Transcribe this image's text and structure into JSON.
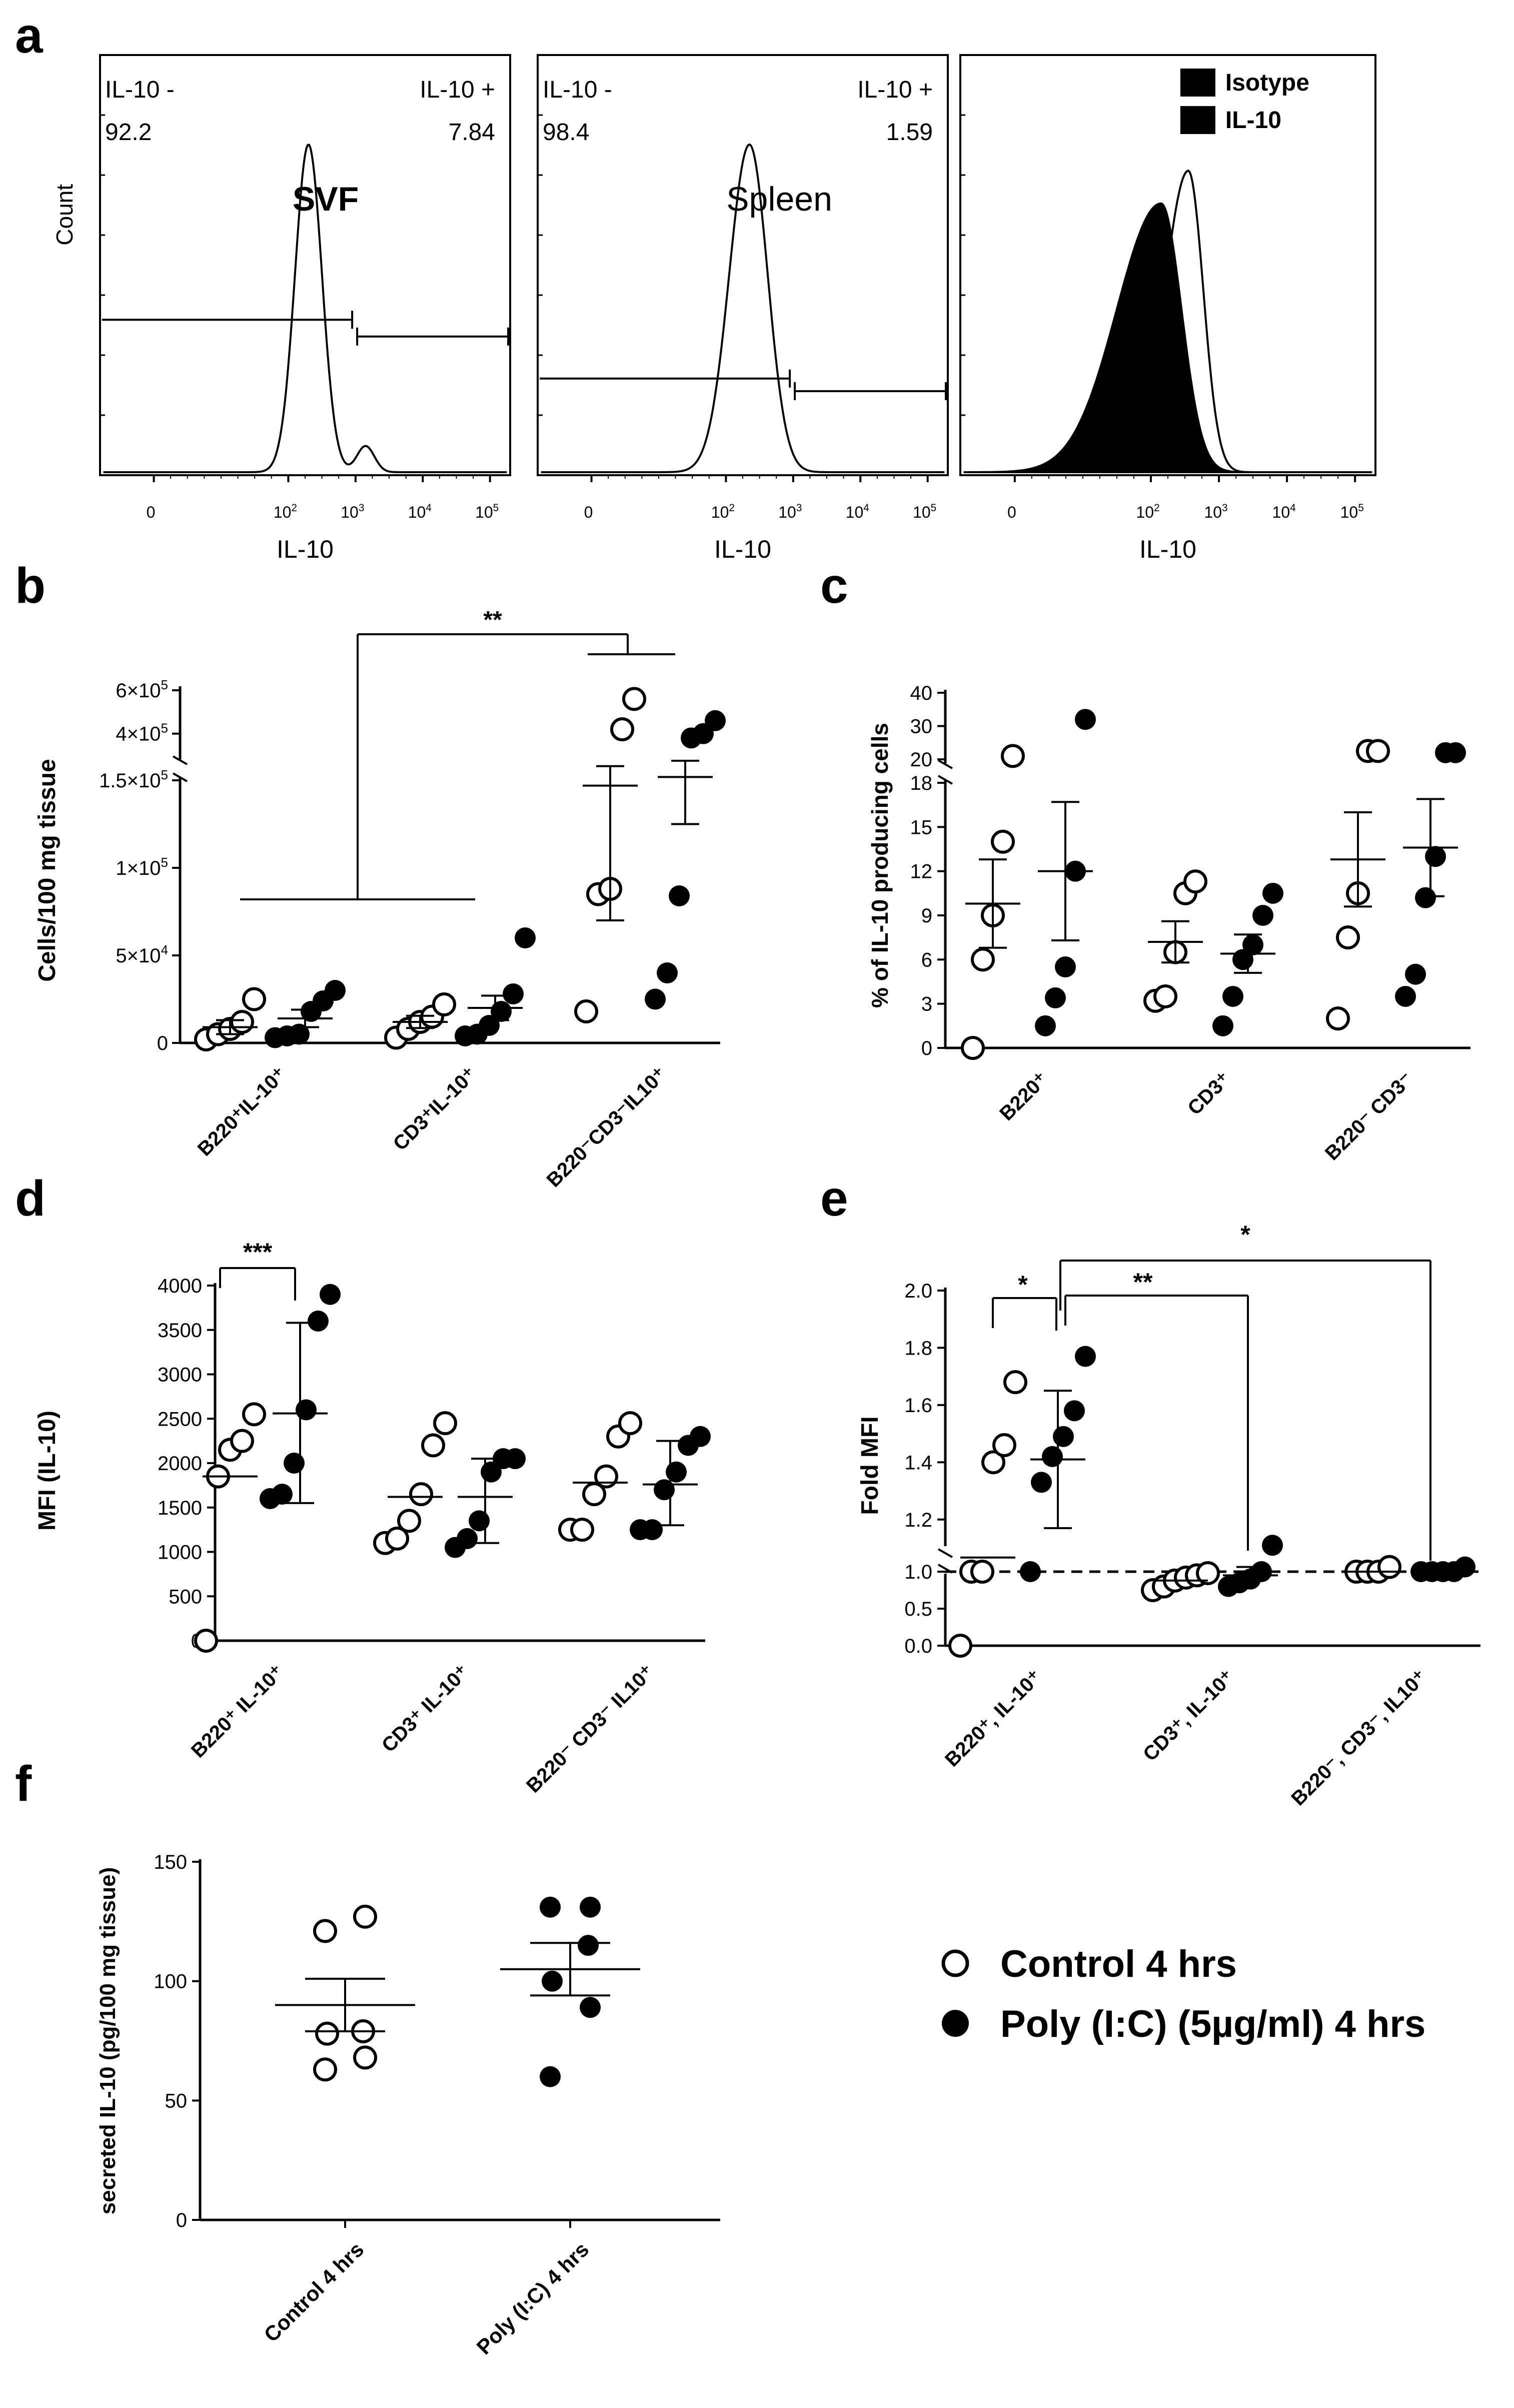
{
  "figure": {
    "panel_letters": [
      "a",
      "b",
      "c",
      "d",
      "e",
      "f"
    ]
  },
  "legend": {
    "control_label": "Control 4 hrs",
    "treated_label": "Poly (I:C) (5µg/ml) 4 hrs"
  },
  "chart_data": [
    {
      "panel": "a1",
      "type": "histogram",
      "title": "SVF",
      "xlabel": "IL-10",
      "ylabel": "Count",
      "xtick_labels": [
        "0",
        "10",
        "10",
        "10",
        "10"
      ],
      "xtick_exponents": [
        "",
        "2",
        "3",
        "4",
        "5"
      ],
      "gates": [
        {
          "label": "IL-10 -",
          "value": "92.2"
        },
        {
          "label": "IL-10 +",
          "value": "7.84"
        }
      ],
      "peaks_log10": [
        2.3,
        3.15
      ]
    },
    {
      "panel": "a2",
      "type": "histogram",
      "title": "Spleen",
      "xlabel": "IL-10",
      "xtick_labels": [
        "0",
        "10",
        "10",
        "10",
        "10"
      ],
      "xtick_exponents": [
        "",
        "2",
        "3",
        "4",
        "5"
      ],
      "gates": [
        {
          "label": "IL-10 -",
          "value": "98.4"
        },
        {
          "label": "IL-10 +",
          "value": "1.59"
        }
      ],
      "peaks_log10": [
        2.35
      ]
    },
    {
      "panel": "a3",
      "type": "histogram",
      "xlabel": "IL-10",
      "xtick_labels": [
        "0",
        "10",
        "10",
        "10",
        "10"
      ],
      "xtick_exponents": [
        "",
        "2",
        "3",
        "4",
        "5"
      ],
      "legend": [
        "Isotype",
        "IL-10"
      ],
      "peaks_log10": [
        2.15,
        2.55
      ]
    },
    {
      "panel": "b",
      "type": "scatter",
      "ylabel": "Cells/100 mg tissue",
      "ytick_labels_lower": [
        "0",
        "5×10",
        "1×10",
        "1.5×10"
      ],
      "ytick_exponents_lower": [
        "",
        "4",
        "5",
        "5"
      ],
      "ytick_labels_upper": [
        "4×10",
        "6×10"
      ],
      "ytick_exponents_upper": [
        "5",
        "5"
      ],
      "ylim_lower": [
        0,
        150000
      ],
      "ylim_upper": [
        300000,
        600000
      ],
      "categories": [
        "B220⁺IL-10⁺",
        "CD3⁺IL-10⁺",
        "B220⁻CD3⁻IL10⁺"
      ],
      "series": [
        {
          "name": "Control 4 hrs",
          "values": [
            [
              2000,
              5000,
              8000,
              12000,
              25000
            ],
            [
              3000,
              8000,
              12000,
              15000,
              22000
            ],
            [
              18000,
              85000,
              88000,
              420000,
              560000
            ]
          ],
          "mean": [
            9000,
            12000,
            160000
          ],
          "sem": [
            4000,
            3500,
            90000
          ]
        },
        {
          "name": "Poly (I:C) (5µg/ml) 4 hrs",
          "values": [
            [
              3000,
              4000,
              5000,
              18000,
              24000,
              30000
            ],
            [
              4000,
              5000,
              10000,
              18000,
              28000,
              60000
            ],
            [
              25000,
              40000,
              84000,
              380000,
              400000,
              460000
            ]
          ],
          "mean": [
            14000,
            20000,
            200000
          ],
          "sem": [
            5000,
            7000,
            75000
          ]
        }
      ],
      "significance": [
        {
          "label": "**"
        }
      ]
    },
    {
      "panel": "c",
      "type": "scatter",
      "ylabel": "% of IL-10 producing cells",
      "ytick_labels_lower": [
        "0",
        "3",
        "6",
        "9",
        "12",
        "15",
        "18"
      ],
      "ytick_labels_upper": [
        "20",
        "30",
        "40"
      ],
      "ylim_lower": [
        0,
        18
      ],
      "ylim_upper": [
        18,
        40
      ],
      "categories": [
        "B220⁺",
        "CD3⁺",
        "B220⁻ CD3⁻"
      ],
      "series": [
        {
          "name": "Control 4 hrs",
          "values": [
            [
              0,
              6,
              9,
              14,
              21
            ],
            [
              3.2,
              3.5,
              6.5,
              10.5,
              11.3
            ],
            [
              2,
              7.5,
              10.5,
              22.5,
              22.5
            ]
          ],
          "mean": [
            9.8,
            7.2,
            12.8
          ],
          "sem": [
            3,
            1.4,
            3.2
          ]
        },
        {
          "name": "Poly (I:C) (5µg/ml) 4 hrs",
          "values": [
            [
              1.5,
              3.4,
              5.5,
              12,
              32
            ],
            [
              1.5,
              3.5,
              6,
              7,
              9,
              10.5
            ],
            [
              3.5,
              5,
              10.2,
              13,
              22,
              22
            ]
          ],
          "mean": [
            12,
            6.4,
            13.6
          ],
          "sem": [
            4.7,
            1.3,
            3.3
          ]
        }
      ]
    },
    {
      "panel": "d",
      "type": "scatter",
      "ylabel": "MFI (IL-10)",
      "ytick_labels": [
        "0",
        "500",
        "1000",
        "1500",
        "2000",
        "2500",
        "3000",
        "3500",
        "4000"
      ],
      "ylim": [
        0,
        4000
      ],
      "categories": [
        "B220⁺ IL-10⁺",
        "CD3⁺ IL-10⁺",
        "B220⁻ CD3⁻ IL10⁺"
      ],
      "series": [
        {
          "name": "Control 4 hrs",
          "values": [
            [
              0,
              1850,
              2150,
              2250,
              2550
            ],
            [
              1100,
              1150,
              1350,
              1650,
              2200,
              2450
            ],
            [
              1250,
              1250,
              1650,
              1850,
              2300,
              2450
            ]
          ],
          "mean": [
            1850,
            1620,
            1780
          ],
          "sem": null
        },
        {
          "name": "Poly (I:C) (5µg/ml) 4 hrs",
          "values": [
            [
              1600,
              1650,
              2000,
              2600,
              3600,
              3900
            ],
            [
              1050,
              1150,
              1350,
              1900,
              2050,
              2050
            ],
            [
              1250,
              1250,
              1700,
              1900,
              2200,
              2300
            ]
          ],
          "mean": [
            2560,
            1620,
            1760
          ],
          "ci": [
            [
              1550,
              3580
            ],
            [
              1100,
              2050
            ],
            [
              1300,
              2250
            ]
          ]
        }
      ],
      "significance": [
        {
          "label": "***"
        }
      ]
    },
    {
      "panel": "e",
      "type": "scatter",
      "ylabel": "Fold MFI",
      "ytick_labels_lower": [
        "0.0",
        "0.5",
        "1.0"
      ],
      "ytick_labels_upper": [
        "1.2",
        "1.4",
        "1.6",
        "1.8",
        "2.0"
      ],
      "ylim_lower": [
        0,
        1.0
      ],
      "ylim_upper": [
        1.1,
        2.0
      ],
      "reference_line": 1.0,
      "categories": [
        "B220⁺, IL-10⁺",
        "CD3⁺, IL-10⁺",
        "B220⁻, CD3⁻, IL10⁺"
      ],
      "series": [
        {
          "name": "Control 4 hrs",
          "values": [
            [
              0,
              1.0,
              1.0,
              1.4,
              1.46,
              1.68
            ],
            [
              0.75,
              0.8,
              0.88,
              0.92,
              0.95,
              0.98
            ],
            [
              1.0,
              1.0,
              1.0,
              1.02
            ]
          ],
          "mean": [
            1.06,
            0.88,
            1.0
          ]
        },
        {
          "name": "Poly (I:C) (5µg/ml) 4 hrs",
          "values": [
            [
              1.0,
              1.33,
              1.42,
              1.49,
              1.58,
              1.77
            ],
            [
              0.8,
              0.85,
              0.9,
              1.0,
              1.11
            ],
            [
              1.0,
              1.0,
              1.0,
              1.0,
              1.02
            ]
          ],
          "mean": [
            1.41,
            0.95,
            1.0
          ],
          "sem": [
            0.24,
            0.07,
            0.02
          ]
        }
      ],
      "significance": [
        {
          "label": "*"
        },
        {
          "label": "**"
        },
        {
          "label": "*"
        }
      ]
    },
    {
      "panel": "f",
      "type": "scatter",
      "ylabel": "secreted IL-10 (pg/100 mg tissue)",
      "ytick_labels": [
        "0",
        "50",
        "100",
        "150"
      ],
      "ylim": [
        0,
        150
      ],
      "categories": [
        "Control 4 hrs",
        "Poly (I:C) 4 hrs"
      ],
      "series": [
        {
          "name": "Control 4 hrs",
          "values": [
            63,
            68,
            78,
            79,
            121,
            127
          ],
          "mean": 90,
          "sem": 11
        },
        {
          "name": "Poly (I:C) (5µg/ml) 4 hrs",
          "values": [
            60,
            89,
            100,
            115,
            131,
            131
          ],
          "mean": 105,
          "sem": 11
        }
      ]
    }
  ]
}
